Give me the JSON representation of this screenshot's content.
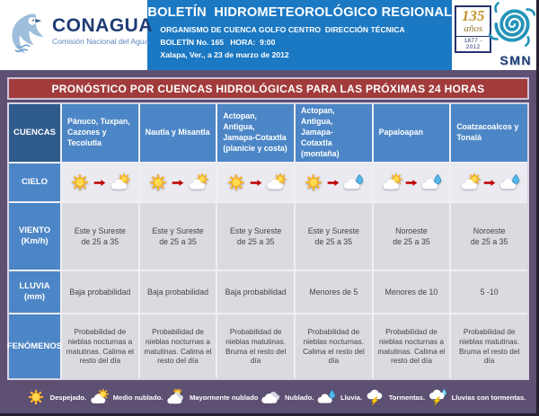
{
  "header": {
    "agency": {
      "name": "CONAGUA",
      "tagline": "Comisión Nacional del Agua"
    },
    "title": "BOLETÍN  HIDROMETEOROLÓGICO REGIONAL",
    "org_line": "ORGANISMO DE CUENCA GOLFO CENTRO  DIRECCIÓN TÉCNICA",
    "bulletin_line": "BOLETÍN No. 165   HORA:  9:00",
    "date_line": "Xalapa, Ver., a 23 de marzo de 2012",
    "anniversary": {
      "number": "135",
      "word": "años",
      "years": "1877 - 2012"
    },
    "smn_label": "SMN"
  },
  "table": {
    "title": "PRONÓSTICO POR CUENCAS HIDROLÓGICAS PARA LAS PRÓXIMAS 24 HORAS",
    "row_labels": {
      "cuencas": "CUENCAS",
      "cielo": "CIELO",
      "viento": "VIENTO\n(Km/h)",
      "lluvia": "LLUVIA\n(mm)",
      "fenomenos": "FENÓMENOS"
    },
    "columns": [
      {
        "cuenca": "Pánuco, Tuxpan,\nCazones y\nTecolutla",
        "cielo": {
          "from": "sun",
          "to": "partly-cloudy"
        },
        "viento": "Este y Sureste\nde 25 a 35",
        "lluvia": "Baja probabilidad",
        "fenomenos": "Probabilidad de nieblas nocturnas a matutinas. Calima el resto del día"
      },
      {
        "cuenca": "Nautla y Misantla",
        "cielo": {
          "from": "sun",
          "to": "partly-cloudy"
        },
        "viento": "Este y Sureste\nde 25 a 35",
        "lluvia": "Baja probabilidad",
        "fenomenos": "Probabilidad de nieblas nocturnas a matutinas. Calima el resto del día"
      },
      {
        "cuenca": "Actopan, Antigua,\nJamapa-Cotaxtla\n(planicie y costa)",
        "cielo": {
          "from": "sun",
          "to": "partly-cloudy"
        },
        "viento": "Este y Sureste\nde 25 a 35",
        "lluvia": "Baja probabilidad",
        "fenomenos": "Probabilidad de nieblas matutinas. Bruma el resto del día"
      },
      {
        "cuenca": "Actopan, Antigua,\nJamapa- Cotaxtla\n(montaña)",
        "cielo": {
          "from": "sun",
          "to": "rain"
        },
        "viento": "Este y Sureste\nde 25 a 35",
        "lluvia": "Menores de 5",
        "fenomenos": "Probabilidad de nieblas nocturnas. Calima el resto del día"
      },
      {
        "cuenca": "Papaloapan",
        "cielo": {
          "from": "partly-cloudy",
          "to": "rain"
        },
        "viento": "Noroeste\nde 25 a 35",
        "lluvia": "Menores de 10",
        "fenomenos": "Probabilidad de nieblas nocturnas a matutinas. Calima el resto del día"
      },
      {
        "cuenca": "Coatzacoalcos y\nTonalá",
        "cielo": {
          "from": "partly-cloudy",
          "to": "rain"
        },
        "viento": "Noroeste\nde 25 a 35",
        "lluvia": "5 -10",
        "fenomenos": "Probabilidad de nieblas matutinas. Bruma el resto del día"
      }
    ]
  },
  "legend": {
    "items": [
      {
        "icon": "sun",
        "label": "Despejado."
      },
      {
        "icon": "partly-cloudy",
        "label": "Medio nublado."
      },
      {
        "icon": "mostly-cloudy",
        "label": "Mayormente nublado"
      },
      {
        "icon": "cloudy",
        "label": "Nublado."
      },
      {
        "icon": "rain",
        "label": "Lluvia."
      },
      {
        "icon": "storm",
        "label": "Tormentas."
      },
      {
        "icon": "rain-storm",
        "label": "Lluvias con tormentas."
      }
    ]
  },
  "colors": {
    "header_blue": "#1B78C2",
    "navy": "#1E3C74",
    "background_purple": "#5D5073",
    "title_maroon": "#A23B3B",
    "row_label_blue": "#4C86C6",
    "cuencas_dark_blue": "#2F5B8C",
    "data_cell_gray": "#DADADF",
    "sky_cell_gray": "#EAEAF0",
    "arrow_red": "#BE0000"
  }
}
